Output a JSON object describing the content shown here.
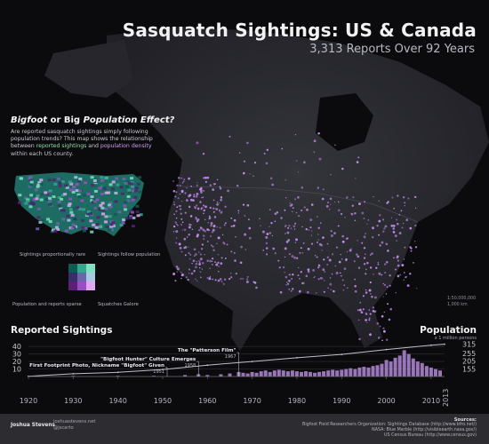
{
  "header": {
    "title": "Sasquatch Sightings: US & Canada",
    "subtitle": "3,313 Reports Over 92 Years"
  },
  "sidebar": {
    "heading_part1": "Bigfoot",
    "heading_part2": " or Big ",
    "heading_part3": "Population Effect?",
    "desc_part1": "Are reported sasquatch sightings simply following population trends? This map shows the relationship between ",
    "desc_hl1": "reported sightings",
    "desc_part2": " and ",
    "desc_hl2": "population density",
    "desc_part3": " within each US county.",
    "legend_labels": {
      "top_left": "Sightings proportionally rare",
      "top_right": "Sightings follow population",
      "bottom_left": "Population and reports sparse",
      "bottom_right": "Squatches Galore"
    },
    "legend_colors": [
      "#0f5a55",
      "#3aa58f",
      "#7fe0c2",
      "#3b2d6a",
      "#6b66a8",
      "#a8c9e0",
      "#5b1f73",
      "#9a4ec2",
      "#e0a8f0"
    ]
  },
  "map_scale": {
    "line1": "1:50,000,000",
    "line2": "1,000 km"
  },
  "colors": {
    "sighting": "#c48cf0",
    "sighting_glow": "#8c4ed0",
    "land": "#2a2a30",
    "water": "#0b0b0e",
    "line_population": "#bfbfc8",
    "bars": "#b38ad8"
  },
  "chart_data": {
    "type": "bar",
    "left_title": "Reported Sightings",
    "right_title": "Population",
    "right_note": "x 1 million persons",
    "x_years": [
      1920,
      1930,
      1940,
      1950,
      1960,
      1970,
      1980,
      1990,
      2000,
      2010
    ],
    "x_range": [
      1920,
      2013
    ],
    "x_end_label": "2013",
    "left_ticks": [
      10,
      20,
      30,
      40
    ],
    "left_range": [
      0,
      45
    ],
    "right_ticks": [
      155,
      205,
      255,
      315
    ],
    "right_range": [
      105,
      325
    ],
    "series": [
      {
        "values": [
          {
            "year": 1922,
            "count": 1
          },
          {
            "year": 1930,
            "count": 1
          },
          {
            "year": 1940,
            "count": 1
          },
          {
            "year": 1948,
            "count": 1
          },
          {
            "year": 1955,
            "count": 2
          },
          {
            "year": 1958,
            "count": 3
          },
          {
            "year": 1960,
            "count": 2
          },
          {
            "year": 1963,
            "count": 3
          },
          {
            "year": 1965,
            "count": 4
          },
          {
            "year": 1967,
            "count": 6
          },
          {
            "year": 1968,
            "count": 5
          },
          {
            "year": 1969,
            "count": 4
          },
          {
            "year": 1970,
            "count": 6
          },
          {
            "year": 1971,
            "count": 5
          },
          {
            "year": 1972,
            "count": 7
          },
          {
            "year": 1973,
            "count": 8
          },
          {
            "year": 1974,
            "count": 6
          },
          {
            "year": 1975,
            "count": 8
          },
          {
            "year": 1976,
            "count": 9
          },
          {
            "year": 1977,
            "count": 8
          },
          {
            "year": 1978,
            "count": 7
          },
          {
            "year": 1979,
            "count": 8
          },
          {
            "year": 1980,
            "count": 7
          },
          {
            "year": 1981,
            "count": 6
          },
          {
            "year": 1982,
            "count": 7
          },
          {
            "year": 1983,
            "count": 6
          },
          {
            "year": 1984,
            "count": 5
          },
          {
            "year": 1985,
            "count": 6
          },
          {
            "year": 1986,
            "count": 7
          },
          {
            "year": 1987,
            "count": 8
          },
          {
            "year": 1988,
            "count": 9
          },
          {
            "year": 1989,
            "count": 8
          },
          {
            "year": 1990,
            "count": 9
          },
          {
            "year": 1991,
            "count": 10
          },
          {
            "year": 1992,
            "count": 11
          },
          {
            "year": 1993,
            "count": 10
          },
          {
            "year": 1994,
            "count": 12
          },
          {
            "year": 1995,
            "count": 13
          },
          {
            "year": 1996,
            "count": 12
          },
          {
            "year": 1997,
            "count": 14
          },
          {
            "year": 1998,
            "count": 15
          },
          {
            "year": 1999,
            "count": 17
          },
          {
            "year": 2000,
            "count": 22
          },
          {
            "year": 2001,
            "count": 20
          },
          {
            "year": 2002,
            "count": 25
          },
          {
            "year": 2003,
            "count": 28
          },
          {
            "year": 2004,
            "count": 35
          },
          {
            "year": 2005,
            "count": 30
          },
          {
            "year": 2006,
            "count": 24
          },
          {
            "year": 2007,
            "count": 20
          },
          {
            "year": 2008,
            "count": 18
          },
          {
            "year": 2009,
            "count": 14
          },
          {
            "year": 2010,
            "count": 12
          },
          {
            "year": 2011,
            "count": 10
          },
          {
            "year": 2012,
            "count": 8
          }
        ]
      },
      {
        "values": [
          {
            "year": 1920,
            "pop": 106
          },
          {
            "year": 1930,
            "pop": 123
          },
          {
            "year": 1940,
            "pop": 132
          },
          {
            "year": 1950,
            "pop": 151
          },
          {
            "year": 1960,
            "pop": 179
          },
          {
            "year": 1970,
            "pop": 203
          },
          {
            "year": 1980,
            "pop": 227
          },
          {
            "year": 1990,
            "pop": 249
          },
          {
            "year": 2000,
            "pop": 281
          },
          {
            "year": 2010,
            "pop": 309
          },
          {
            "year": 2013,
            "pop": 316
          }
        ]
      }
    ],
    "annotations": [
      {
        "label": "First Footprint Photo, Nickname \"Bigfoot\" Given",
        "year_label": "1951",
        "year": 1951,
        "count": 12
      },
      {
        "label": "\"Bigfoot Hunter\" Culture Emerges",
        "year_label": "1958",
        "year": 1958,
        "count": 20
      },
      {
        "label": "The \"Patterson Film\"",
        "year_label": "1967",
        "year": 1967,
        "count": 32
      }
    ]
  },
  "footer": {
    "author": "Joshua Stevens",
    "link1": "joshuastevens.net",
    "link2": "@jscarto",
    "sources_heading": "Sources:",
    "source1": "Bigfoot Field Researchers Organization: Sightings Database (http://www.bfro.net/)",
    "source2": "NASA: Blue Marble (http://visibleearth.nasa.gov/)",
    "source3": "US Census Bureau (http://www.census.gov)"
  }
}
